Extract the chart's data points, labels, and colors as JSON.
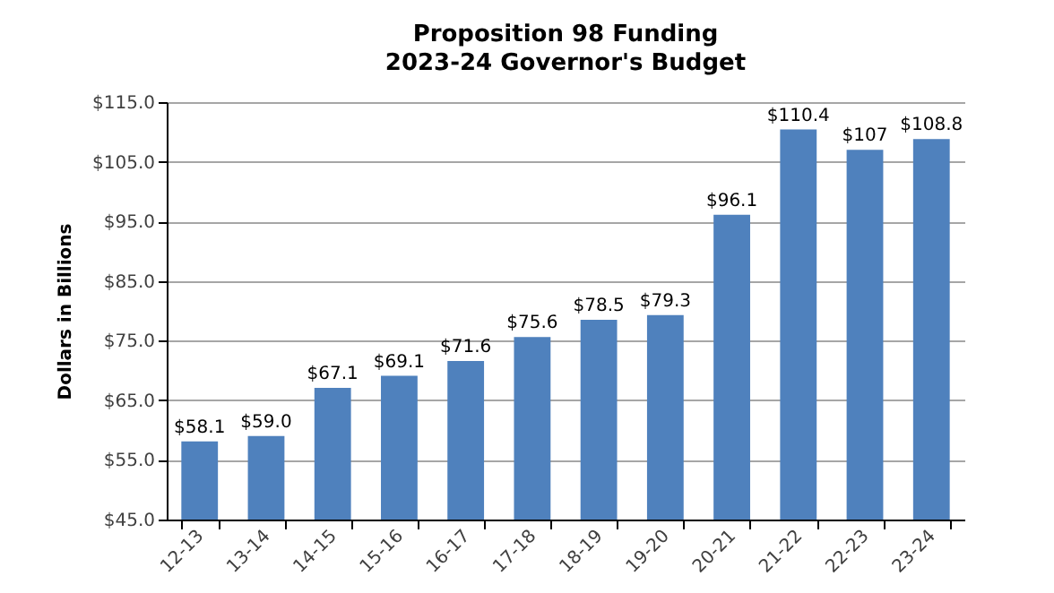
{
  "chart_data": {
    "type": "bar",
    "title": "Proposition 98 Funding",
    "subtitle": "2023-24 Governor's Budget",
    "ylabel": "Dollars in Billions",
    "categories": [
      "12-13",
      "13-14",
      "14-15",
      "15-16",
      "16-17",
      "17-18",
      "18-19",
      "19-20",
      "20-21",
      "21-22",
      "22-23",
      "23-24"
    ],
    "values": [
      58.1,
      59.0,
      67.1,
      69.1,
      71.6,
      75.6,
      78.5,
      79.3,
      96.1,
      110.4,
      107,
      108.8
    ],
    "value_labels": [
      "$58.1",
      "$59.0",
      "$67.1",
      "$69.1",
      "$71.6",
      "$75.6",
      "$78.5",
      "$79.3",
      "$96.1",
      "$110.4",
      "$107",
      "$108.8"
    ],
    "color": "#4f81bd",
    "ylim": [
      45,
      115
    ],
    "yticks": [
      {
        "value": 45,
        "label": "$45.0"
      },
      {
        "value": 55,
        "label": "$55.0"
      },
      {
        "value": 65,
        "label": "$65.0"
      },
      {
        "value": 75,
        "label": "$75.0"
      },
      {
        "value": 85,
        "label": "$85.0"
      },
      {
        "value": 95,
        "label": "$95.0"
      },
      {
        "value": 105,
        "label": "$105.0"
      },
      {
        "value": 115,
        "label": "$115.0"
      }
    ],
    "grid": "y"
  }
}
